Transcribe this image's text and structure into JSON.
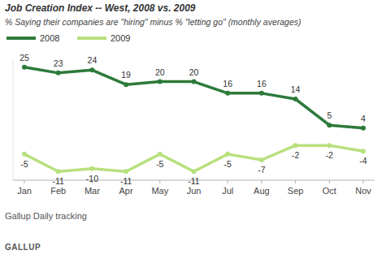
{
  "chart_data": {
    "type": "line",
    "title": "Job Creation Index -- West, 2008 vs. 2009",
    "subtitle": "% Saying their companies are \"hiring\" minus % \"letting go\" (monthly averages)",
    "categories": [
      "Jan",
      "Feb",
      "Mar",
      "Apr",
      "May",
      "Jun",
      "Jul",
      "Aug",
      "Sep",
      "Oct",
      "Nov"
    ],
    "series": [
      {
        "name": "2008",
        "color": "#2d7a3a",
        "values": [
          25,
          23,
          24,
          19,
          20,
          20,
          16,
          16,
          14,
          5,
          4
        ]
      },
      {
        "name": "2009",
        "color": "#b8e07e",
        "values": [
          -5,
          -11,
          -10,
          -11,
          -5,
          -11,
          -5,
          -7,
          -2,
          -2,
          -4
        ]
      }
    ],
    "ylim": [
      -14,
      28
    ],
    "yticks": [],
    "tick_labels": "x",
    "grid": false,
    "data_labels": true,
    "marker": "circle",
    "legend": "top left",
    "source": "Gallup Daily tracking",
    "logo": "GALLUP"
  }
}
